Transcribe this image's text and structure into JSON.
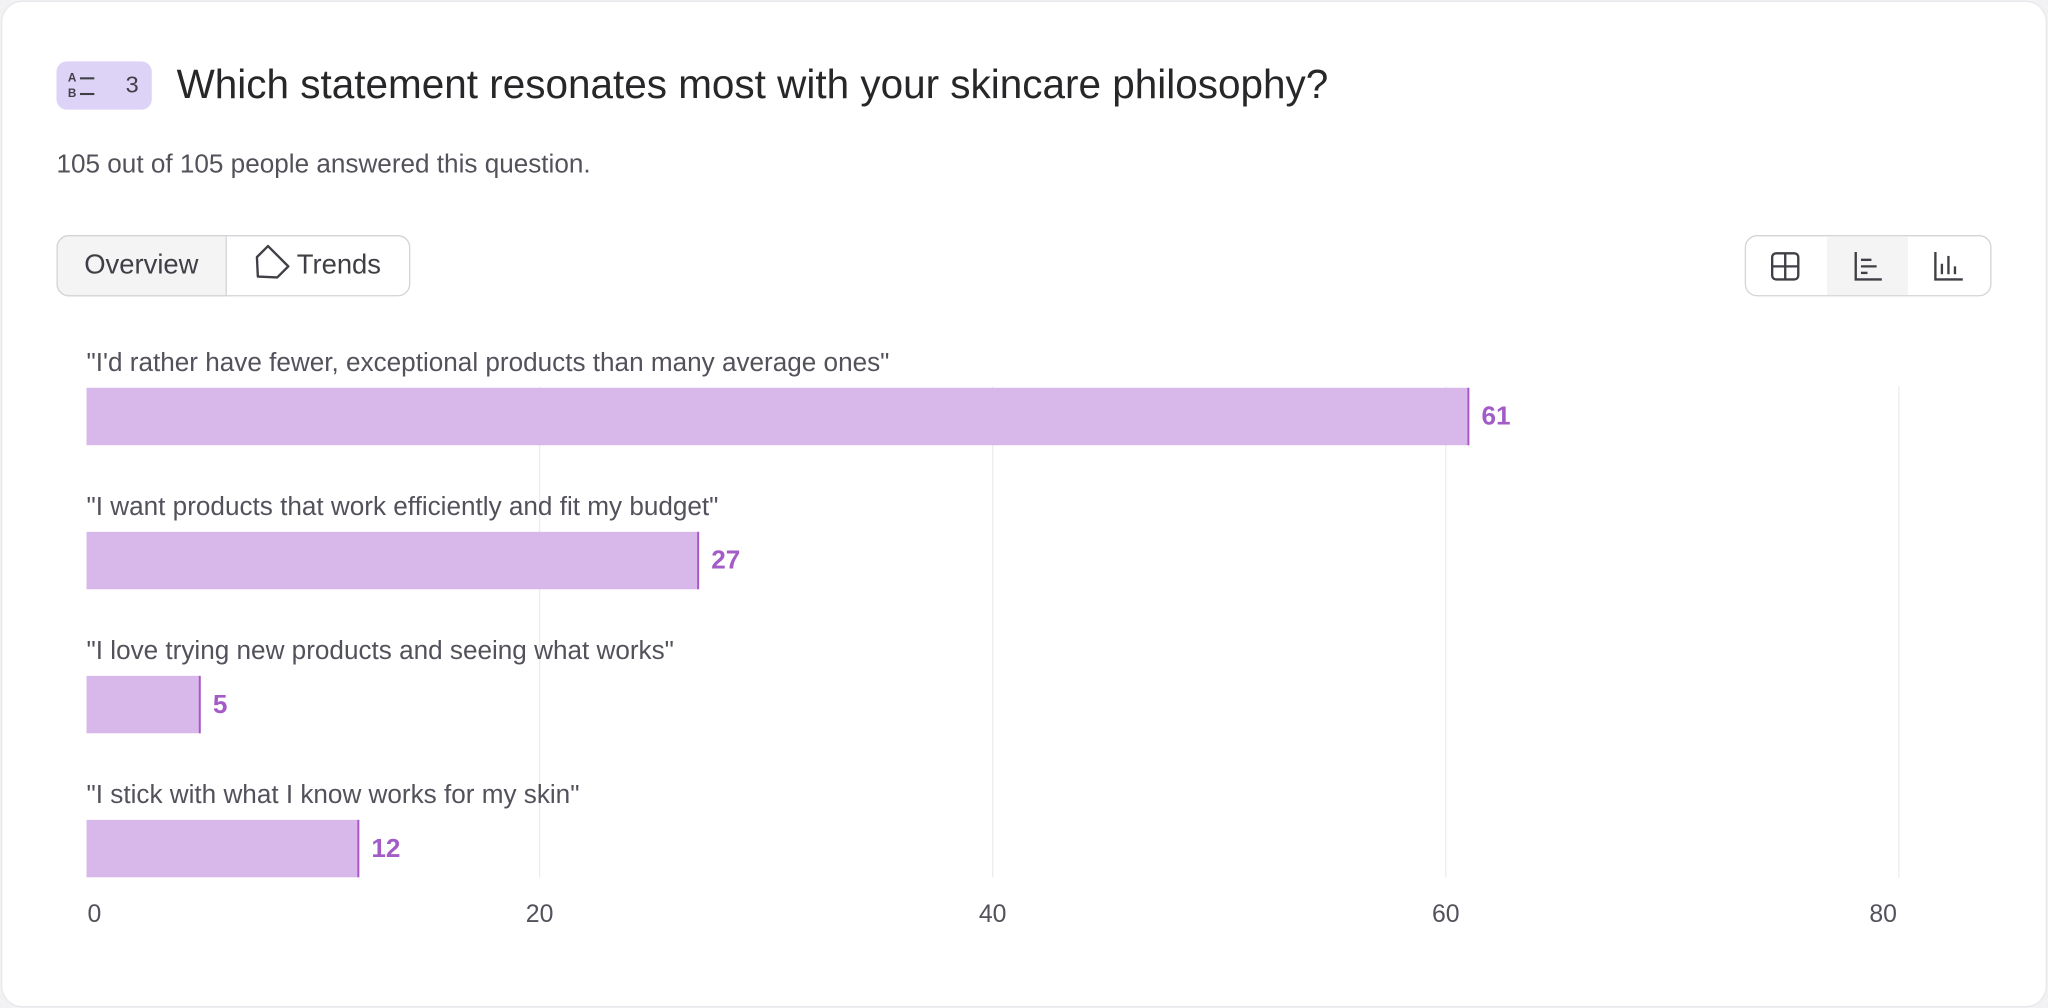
{
  "header": {
    "badge": 3,
    "title": "Which statement resonates most with your skincare philosophy?",
    "subtitle": "105 out of 105 people answered this question."
  },
  "tabs": [
    "Overview",
    "Trends"
  ],
  "chart_data": {
    "type": "hbar",
    "categories": [
      "\"I'd rather have fewer, exceptional products than many average ones\"",
      "\"I want products that work efficiently and fit my budget\"",
      "\"I love trying new products and seeing what works\"",
      "\"I stick with what I know works for my skin\""
    ],
    "values": [
      61,
      27,
      5,
      12
    ],
    "color": "#d8b8ea",
    "edge_color": "#a855c7",
    "label_color": "#a35bc8",
    "xlim": [
      0,
      80
    ],
    "xticks": [
      0,
      20,
      40,
      60,
      80
    ],
    "grid": true
  }
}
